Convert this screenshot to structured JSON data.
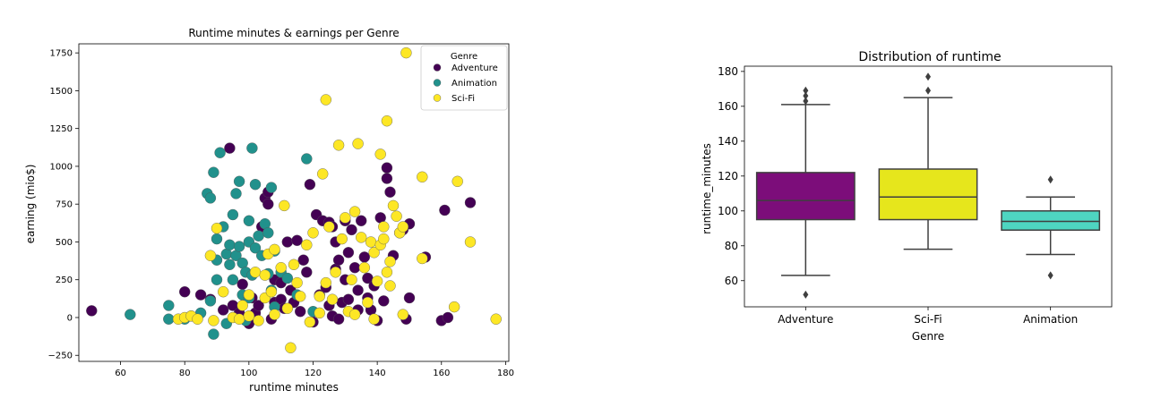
{
  "chart_data": [
    {
      "type": "scatter",
      "title": "Runtime minutes & earnings per Genre",
      "xlabel": "runtime minutes",
      "ylabel": "earning (mio$)",
      "xlim": [
        47,
        181
      ],
      "ylim": [
        -290,
        1810
      ],
      "xticks": [
        60,
        80,
        100,
        120,
        140,
        160,
        180
      ],
      "yticks": [
        -250,
        0,
        250,
        500,
        750,
        1000,
        1250,
        1500,
        1750
      ],
      "grid": false,
      "legend": {
        "title": "Genre",
        "placement": "top-right"
      },
      "series": [
        {
          "name": "Adventure",
          "color": "#440154",
          "points": [
            [
              51,
              45
            ],
            [
              80,
              170
            ],
            [
              85,
              150
            ],
            [
              88,
              120
            ],
            [
              92,
              50
            ],
            [
              94,
              1120
            ],
            [
              95,
              80
            ],
            [
              97,
              30
            ],
            [
              98,
              220
            ],
            [
              100,
              -40
            ],
            [
              101,
              130
            ],
            [
              102,
              30
            ],
            [
              103,
              80
            ],
            [
              104,
              600
            ],
            [
              105,
              790
            ],
            [
              106,
              830
            ],
            [
              106,
              750
            ],
            [
              107,
              -10
            ],
            [
              108,
              100
            ],
            [
              108,
              250
            ],
            [
              110,
              230
            ],
            [
              110,
              120
            ],
            [
              111,
              60
            ],
            [
              112,
              500
            ],
            [
              113,
              180
            ],
            [
              114,
              100
            ],
            [
              115,
              510
            ],
            [
              116,
              40
            ],
            [
              117,
              380
            ],
            [
              118,
              300
            ],
            [
              119,
              880
            ],
            [
              120,
              -30
            ],
            [
              121,
              680
            ],
            [
              122,
              150
            ],
            [
              123,
              640
            ],
            [
              124,
              200
            ],
            [
              125,
              630
            ],
            [
              125,
              80
            ],
            [
              126,
              600
            ],
            [
              126,
              10
            ],
            [
              127,
              500
            ],
            [
              127,
              320
            ],
            [
              128,
              380
            ],
            [
              128,
              -10
            ],
            [
              129,
              100
            ],
            [
              130,
              640
            ],
            [
              130,
              250
            ],
            [
              131,
              430
            ],
            [
              131,
              120
            ],
            [
              132,
              580
            ],
            [
              133,
              330
            ],
            [
              134,
              180
            ],
            [
              134,
              50
            ],
            [
              135,
              640
            ],
            [
              136,
              400
            ],
            [
              137,
              260
            ],
            [
              137,
              130
            ],
            [
              138,
              50
            ],
            [
              139,
              210
            ],
            [
              140,
              -20
            ],
            [
              141,
              660
            ],
            [
              142,
              110
            ],
            [
              143,
              990
            ],
            [
              143,
              920
            ],
            [
              144,
              830
            ],
            [
              145,
              410
            ],
            [
              147,
              560
            ],
            [
              148,
              580
            ],
            [
              149,
              -10
            ],
            [
              150,
              620
            ],
            [
              150,
              130
            ],
            [
              155,
              400
            ],
            [
              160,
              -20
            ],
            [
              161,
              710
            ],
            [
              162,
              0
            ],
            [
              169,
              760
            ]
          ]
        },
        {
          "name": "Animation",
          "color": "#21918c",
          "points": [
            [
              63,
              20
            ],
            [
              75,
              -10
            ],
            [
              75,
              80
            ],
            [
              80,
              -10
            ],
            [
              82,
              10
            ],
            [
              85,
              30
            ],
            [
              87,
              820
            ],
            [
              88,
              790
            ],
            [
              88,
              110
            ],
            [
              89,
              960
            ],
            [
              89,
              -110
            ],
            [
              90,
              380
            ],
            [
              90,
              520
            ],
            [
              90,
              250
            ],
            [
              91,
              1090
            ],
            [
              92,
              600
            ],
            [
              93,
              420
            ],
            [
              93,
              -40
            ],
            [
              94,
              350
            ],
            [
              94,
              480
            ],
            [
              95,
              250
            ],
            [
              95,
              680
            ],
            [
              96,
              410
            ],
            [
              96,
              820
            ],
            [
              97,
              470
            ],
            [
              97,
              900
            ],
            [
              98,
              360
            ],
            [
              98,
              150
            ],
            [
              99,
              300
            ],
            [
              99,
              -20
            ],
            [
              100,
              500
            ],
            [
              100,
              640
            ],
            [
              100,
              130
            ],
            [
              101,
              1120
            ],
            [
              101,
              280
            ],
            [
              102,
              460
            ],
            [
              102,
              880
            ],
            [
              103,
              540
            ],
            [
              104,
              410
            ],
            [
              105,
              620
            ],
            [
              106,
              560
            ],
            [
              106,
              290
            ],
            [
              107,
              860
            ],
            [
              107,
              180
            ],
            [
              108,
              440
            ],
            [
              108,
              70
            ],
            [
              110,
              300
            ],
            [
              112,
              260
            ],
            [
              115,
              150
            ],
            [
              118,
              1050
            ],
            [
              120,
              40
            ]
          ]
        },
        {
          "name": "Sci-Fi",
          "color": "#fde725",
          "points": [
            [
              78,
              -10
            ],
            [
              80,
              0
            ],
            [
              82,
              10
            ],
            [
              84,
              -10
            ],
            [
              88,
              410
            ],
            [
              89,
              -20
            ],
            [
              90,
              590
            ],
            [
              92,
              170
            ],
            [
              95,
              0
            ],
            [
              97,
              -10
            ],
            [
              98,
              80
            ],
            [
              100,
              150
            ],
            [
              100,
              10
            ],
            [
              102,
              300
            ],
            [
              103,
              -20
            ],
            [
              105,
              280
            ],
            [
              105,
              130
            ],
            [
              106,
              420
            ],
            [
              107,
              170
            ],
            [
              108,
              450
            ],
            [
              108,
              20
            ],
            [
              110,
              330
            ],
            [
              111,
              740
            ],
            [
              112,
              60
            ],
            [
              113,
              -200
            ],
            [
              114,
              350
            ],
            [
              115,
              230
            ],
            [
              116,
              140
            ],
            [
              118,
              480
            ],
            [
              119,
              -30
            ],
            [
              120,
              560
            ],
            [
              122,
              140
            ],
            [
              122,
              30
            ],
            [
              123,
              950
            ],
            [
              124,
              1440
            ],
            [
              124,
              230
            ],
            [
              125,
              600
            ],
            [
              126,
              120
            ],
            [
              127,
              300
            ],
            [
              128,
              1140
            ],
            [
              129,
              520
            ],
            [
              130,
              660
            ],
            [
              131,
              40
            ],
            [
              132,
              250
            ],
            [
              133,
              700
            ],
            [
              133,
              20
            ],
            [
              134,
              1150
            ],
            [
              135,
              530
            ],
            [
              136,
              330
            ],
            [
              137,
              100
            ],
            [
              138,
              500
            ],
            [
              139,
              430
            ],
            [
              139,
              -10
            ],
            [
              140,
              240
            ],
            [
              141,
              1080
            ],
            [
              141,
              480
            ],
            [
              142,
              520
            ],
            [
              142,
              600
            ],
            [
              143,
              1300
            ],
            [
              143,
              300
            ],
            [
              144,
              210
            ],
            [
              144,
              370
            ],
            [
              145,
              740
            ],
            [
              146,
              670
            ],
            [
              147,
              560
            ],
            [
              148,
              600
            ],
            [
              148,
              20
            ],
            [
              149,
              1750
            ],
            [
              154,
              930
            ],
            [
              154,
              390
            ],
            [
              164,
              70
            ],
            [
              165,
              900
            ],
            [
              169,
              500
            ],
            [
              177,
              -10
            ]
          ]
        }
      ]
    },
    {
      "type": "box",
      "title": "Distribution of runtime",
      "xlabel": "Genre",
      "ylabel": "runtime_minutes",
      "ylim": [
        45,
        183
      ],
      "yticks": [
        60,
        80,
        100,
        120,
        140,
        160,
        180
      ],
      "grid": false,
      "categories": [
        "Adventure",
        "Sci-Fi",
        "Animation"
      ],
      "boxes": [
        {
          "category": "Adventure",
          "color": "#7c0d7a",
          "whisker_low": 63,
          "q1": 95,
          "median": 106,
          "q3": 122,
          "whisker_high": 161,
          "outliers": [
            52,
            163,
            166,
            169
          ]
        },
        {
          "category": "Sci-Fi",
          "color": "#e6e61c",
          "whisker_low": 78,
          "q1": 95,
          "median": 108,
          "q3": 124,
          "whisker_high": 165,
          "outliers": [
            169,
            177
          ]
        },
        {
          "category": "Animation",
          "color": "#4ed5c1",
          "whisker_low": 75,
          "q1": 89,
          "median": 94,
          "q3": 100,
          "whisker_high": 108,
          "outliers": [
            63,
            118
          ]
        }
      ]
    }
  ]
}
